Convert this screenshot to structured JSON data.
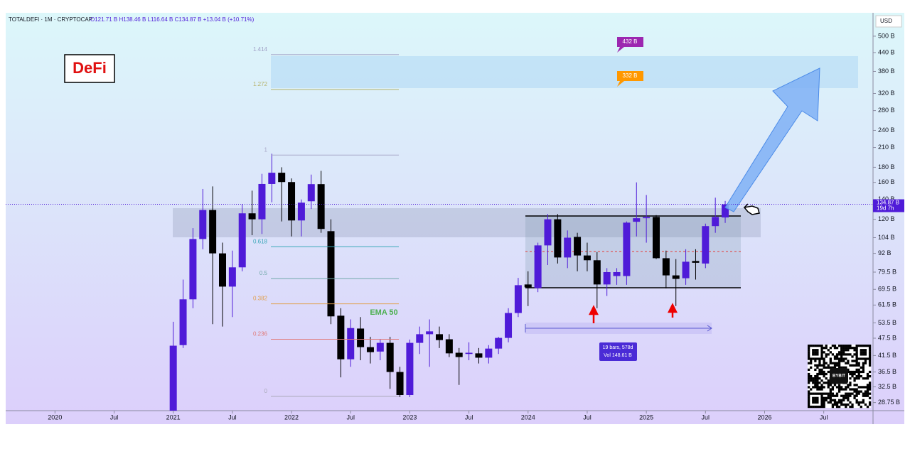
{
  "header": {
    "symbol": "TOTALDEFI · 1M · CRYPTOCAP",
    "ohlc": "O121.71 B  H138.46 B  L116.64 B  C134.87 B  +13.04 B (+10.71%)",
    "currency": "USD"
  },
  "chart_data": {
    "type": "candlestick",
    "log_scale": true,
    "up_color": "#4f1bd8",
    "down_color": "#000000",
    "x": [
      "2021-01",
      "2021-02",
      "2021-03",
      "2021-04",
      "2021-05",
      "2021-06",
      "2021-07",
      "2021-08",
      "2021-09",
      "2021-10",
      "2021-11",
      "2021-12",
      "2022-01",
      "2022-02",
      "2022-03",
      "2022-04",
      "2022-05",
      "2022-06",
      "2022-07",
      "2022-08",
      "2022-09",
      "2022-10",
      "2022-11",
      "2022-12",
      "2023-01",
      "2023-02",
      "2023-03",
      "2023-04",
      "2023-05",
      "2023-06",
      "2023-07",
      "2023-08",
      "2023-09",
      "2023-10",
      "2023-11",
      "2023-12",
      "2024-01",
      "2024-02",
      "2024-03",
      "2024-04",
      "2024-05",
      "2024-06",
      "2024-07",
      "2024-08",
      "2024-09",
      "2024-10",
      "2024-11",
      "2024-12",
      "2025-01",
      "2025-02",
      "2025-03",
      "2025-04",
      "2025-05",
      "2025-06",
      "2025-07",
      "2025-08",
      "2025-09"
    ],
    "open": [
      24,
      45,
      64.3,
      102.9,
      129,
      92,
      71,
      82.5,
      125.7,
      120,
      158,
      172.5,
      160.4,
      118.9,
      138.1,
      157.8,
      109.4,
      56.6,
      40.3,
      51.2,
      44.3,
      42.8,
      45.8,
      36.5,
      30.5,
      45.8,
      49,
      49,
      47.1,
      42.4,
      42,
      42.2,
      40.8,
      43.8,
      47.6,
      57.8,
      72.2,
      70.2,
      97.9,
      120,
      89.1,
      104.6,
      90.5,
      87.2,
      72.2,
      77.1,
      77.1,
      117.7,
      121,
      122.2,
      88.6,
      77.5,
      75.8,
      86.7,
      85,
      113.8,
      121.71
    ],
    "high": [
      54,
      75,
      112,
      152,
      155,
      100,
      94,
      135,
      150,
      171,
      200,
      180,
      165,
      140,
      170,
      175,
      120,
      60,
      55,
      56,
      48,
      47,
      48,
      38,
      47,
      52,
      55,
      52,
      49,
      44,
      46,
      44,
      45,
      48,
      60,
      76,
      80,
      100,
      125,
      125,
      110,
      108,
      100,
      93,
      82,
      82,
      118,
      160,
      145,
      124,
      94,
      88,
      95,
      95,
      116,
      142,
      138.46
    ],
    "low": [
      22,
      44,
      60,
      95,
      53,
      52,
      56,
      80,
      106,
      107,
      137,
      118,
      105,
      105,
      130,
      108,
      53,
      35,
      38,
      40,
      39,
      40,
      32,
      30,
      30,
      42,
      38,
      44,
      41,
      33,
      40,
      39,
      39,
      42,
      46,
      56,
      61,
      68,
      84,
      85,
      82,
      80,
      80,
      60,
      66,
      72,
      72,
      105,
      100,
      88,
      70,
      61,
      72,
      75,
      82,
      108,
      116.64
    ],
    "close": [
      44.8,
      64.3,
      102.9,
      129,
      92,
      71,
      82.5,
      125.7,
      120,
      158,
      172.5,
      160.4,
      118.9,
      136.6,
      157.8,
      111.3,
      56.3,
      40.3,
      51.4,
      44.3,
      42.6,
      45.8,
      36.5,
      30.5,
      45.8,
      49,
      50.1,
      46.8,
      42.2,
      41,
      42.4,
      40.8,
      43.8,
      47.6,
      57.8,
      71.8,
      70.6,
      97.9,
      120,
      89.1,
      104,
      90.5,
      87.2,
      72.2,
      79.5,
      79.5,
      116.9,
      121,
      122.2,
      88.6,
      77.5,
      75.4,
      86.2,
      85.5,
      113.8,
      122.2,
      134.87
    ],
    "xlim": [
      "2019-08",
      "2026-12"
    ],
    "xticks": [
      {
        "value": "2020-01",
        "label": "2020"
      },
      {
        "value": "2020-07",
        "label": "Jul"
      },
      {
        "value": "2021-01",
        "label": "2021"
      },
      {
        "value": "2021-07",
        "label": "Jul"
      },
      {
        "value": "2022-01",
        "label": "2022"
      },
      {
        "value": "2022-07",
        "label": "Jul"
      },
      {
        "value": "2023-01",
        "label": "2023"
      },
      {
        "value": "2023-07",
        "label": "Jul"
      },
      {
        "value": "2024-01",
        "label": "2024"
      },
      {
        "value": "2024-07",
        "label": "Jul"
      },
      {
        "value": "2025-01",
        "label": "2025"
      },
      {
        "value": "2025-07",
        "label": "Jul"
      },
      {
        "value": "2026-01",
        "label": "2026"
      },
      {
        "value": "2026-07",
        "label": "Jul"
      }
    ],
    "ylim": [
      27,
      600
    ],
    "yticks": [
      {
        "value": 500,
        "label": "500 B"
      },
      {
        "value": 440,
        "label": "440 B"
      },
      {
        "value": 380,
        "label": "380 B"
      },
      {
        "value": 320,
        "label": "320 B"
      },
      {
        "value": 280,
        "label": "280 B"
      },
      {
        "value": 240,
        "label": "240 B"
      },
      {
        "value": 210,
        "label": "210 B"
      },
      {
        "value": 180,
        "label": "180 B"
      },
      {
        "value": 160,
        "label": "160 B"
      },
      {
        "value": 140,
        "label": "140 B"
      },
      {
        "value": 120,
        "label": "120 B"
      },
      {
        "value": 104,
        "label": "104 B"
      },
      {
        "value": 92,
        "label": "92 B"
      },
      {
        "value": 79.5,
        "label": "79.5 B"
      },
      {
        "value": 69.5,
        "label": "69.5 B"
      },
      {
        "value": 61.5,
        "label": "61.5 B"
      },
      {
        "value": 53.5,
        "label": "53.5 B"
      },
      {
        "value": 47.5,
        "label": "47.5 B"
      },
      {
        "value": 41.5,
        "label": "41.5 B"
      },
      {
        "value": 36.5,
        "label": "36.5 B"
      },
      {
        "value": 32.5,
        "label": "32.5 B"
      },
      {
        "value": 28.75,
        "label": "28.75 B"
      }
    ],
    "last_price_label": "134.87 B",
    "countdown": "19d 7h",
    "fib_levels": [
      {
        "label": "1.414",
        "value": 433,
        "color": "#9e9ec4"
      },
      {
        "label": "1.272",
        "value": 330,
        "color": "#b5b26a"
      },
      {
        "label": "1",
        "value": 198,
        "color": "#a8a8c8"
      },
      {
        "label": "0.618",
        "value": 96.9,
        "color": "#3aa7b8"
      },
      {
        "label": "0.5",
        "value": 75.6,
        "color": "#6fa8a8"
      },
      {
        "label": "0.382",
        "value": 62.1,
        "color": "#e0a050"
      },
      {
        "label": "0.236",
        "value": 47.1,
        "color": "#e07a7a"
      },
      {
        "label": "0",
        "value": 30.2,
        "color": "#a8a8b8"
      }
    ],
    "annotations": {
      "logo": "DeFi",
      "ema": "EMA 50",
      "target_high": "432 B",
      "target_low": "332 B",
      "measure_bars": "19 bars, 578d",
      "measure_vol": "Vol 148.61 B",
      "qr": "BYBIT"
    }
  }
}
